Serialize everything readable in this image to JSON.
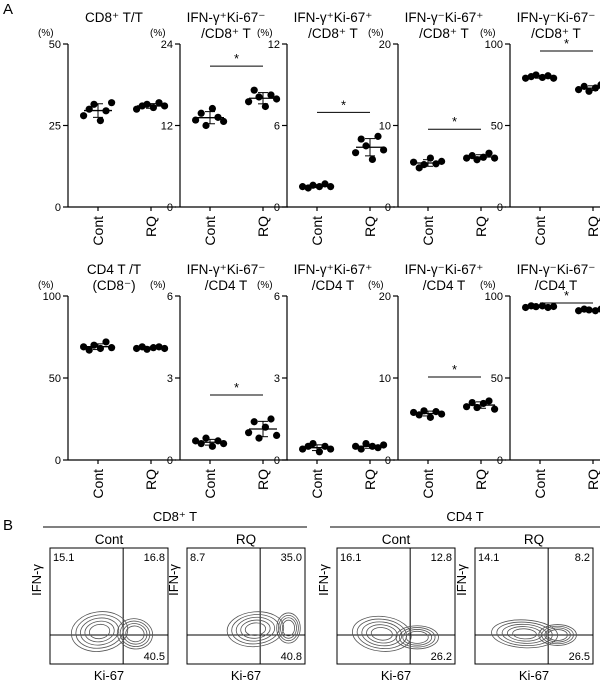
{
  "panel_labels": {
    "a": "A",
    "b": "B"
  },
  "chart_data": {
    "type": "scatter",
    "unit": "(%)",
    "sig_mark": "*",
    "categories": [
      "Cont",
      "RQ"
    ],
    "panels": [
      {
        "title1": "CD8⁺ T/T",
        "title2": "",
        "ylim": [
          0,
          50
        ],
        "ticks": [
          "0",
          "25",
          "50"
        ],
        "sig": false,
        "cont": [
          28,
          30,
          31.5,
          26.5,
          29.5,
          32
        ],
        "rq": [
          30,
          31,
          31.5,
          30.5,
          32,
          31
        ]
      },
      {
        "title1": "IFN-γ⁺Ki-67⁻",
        "title2": "/CD8⁺ T",
        "ylim": [
          0,
          24
        ],
        "ticks": [
          "0",
          "12",
          "24"
        ],
        "sig": true,
        "cont": [
          12.8,
          13.8,
          12.0,
          14.5,
          13.2,
          12.6
        ],
        "rq": [
          15.5,
          17.2,
          16.2,
          14.8,
          16.5,
          15.9
        ]
      },
      {
        "title1": "IFN-γ⁺Ki-67⁺",
        "title2": "/CD8⁺ T",
        "ylim": [
          0,
          12
        ],
        "ticks": [
          "0",
          "6",
          "12"
        ],
        "sig": true,
        "cont": [
          1.5,
          1.4,
          1.6,
          1.5,
          1.7,
          1.5
        ],
        "rq": [
          4.0,
          5.0,
          4.5,
          3.5,
          5.2,
          4.2
        ]
      },
      {
        "title1": "IFN-γ⁻Ki-67⁺",
        "title2": "/CD8⁺ T",
        "ylim": [
          0,
          20
        ],
        "ticks": [
          "0",
          "10",
          "20"
        ],
        "sig": true,
        "cont": [
          5.5,
          4.8,
          5.2,
          6.0,
          5.3,
          5.6
        ],
        "rq": [
          6.0,
          6.3,
          5.8,
          6.1,
          6.6,
          6.0
        ]
      },
      {
        "title1": "IFN-γ⁻Ki-67⁻",
        "title2": "/CD8⁺ T",
        "ylim": [
          0,
          100
        ],
        "ticks": [
          "0",
          "50",
          "100"
        ],
        "sig": true,
        "cont": [
          79,
          80,
          81,
          79.5,
          80.5,
          79
        ],
        "rq": [
          72,
          74,
          71,
          73,
          75,
          72.5
        ]
      },
      {
        "title1": "CD4 T /T",
        "title2": "(CD8⁻)",
        "ylim": [
          0,
          100
        ],
        "ticks": [
          "0",
          "50",
          "100"
        ],
        "sig": false,
        "cont": [
          69,
          67,
          70,
          68,
          72,
          68.5
        ],
        "rq": [
          68,
          69,
          67.5,
          68.5,
          69,
          68
        ]
      },
      {
        "title1": "IFN-γ⁺Ki-67⁻",
        "title2": "/CD4 T",
        "ylim": [
          0,
          6
        ],
        "ticks": [
          "0",
          "3",
          "6"
        ],
        "sig": true,
        "cont": [
          0.7,
          0.6,
          0.8,
          0.5,
          0.7,
          0.6
        ],
        "rq": [
          1.0,
          1.4,
          0.8,
          1.2,
          1.5,
          0.9
        ]
      },
      {
        "title1": "IFN-γ⁺Ki-67⁺",
        "title2": "/CD4 T",
        "ylim": [
          0,
          6
        ],
        "ticks": [
          "0",
          "3",
          "6"
        ],
        "sig": false,
        "cont": [
          0.4,
          0.5,
          0.6,
          0.3,
          0.5,
          0.4
        ],
        "rq": [
          0.5,
          0.4,
          0.6,
          0.5,
          0.45,
          0.55
        ]
      },
      {
        "title1": "IFN-γ⁻Ki-67⁺",
        "title2": "/CD4 T",
        "ylim": [
          0,
          20
        ],
        "ticks": [
          "0",
          "10",
          "20"
        ],
        "sig": true,
        "cont": [
          5.8,
          5.5,
          6.0,
          5.2,
          5.9,
          5.6
        ],
        "rq": [
          6.5,
          7.0,
          6.4,
          6.9,
          7.2,
          6.2
        ]
      },
      {
        "title1": "IFN-γ⁻Ki-67⁻",
        "title2": "/CD4 T",
        "ylim": [
          0,
          100
        ],
        "ticks": [
          "0",
          "50",
          "100"
        ],
        "sig": true,
        "cont": [
          93,
          94,
          93.5,
          94,
          93,
          93.6
        ],
        "rq": [
          91,
          92,
          91.5,
          91,
          92,
          91.8
        ]
      }
    ]
  },
  "flow": {
    "axis_y": "IFN-γ",
    "axis_x": "Ki-67",
    "groups": [
      {
        "label": "CD8⁺ T",
        "plots": [
          {
            "title": "Cont",
            "ul": "15.1",
            "ur": "16.8",
            "lr": "40.5"
          },
          {
            "title": "RQ",
            "ul": "8.7",
            "ur": "35.0",
            "lr": "40.8"
          }
        ]
      },
      {
        "label": "CD4 T",
        "plots": [
          {
            "title": "Cont",
            "ul": "16.1",
            "ur": "12.8",
            "lr": "26.2"
          },
          {
            "title": "RQ",
            "ul": "14.1",
            "ur": "8.2",
            "lr": "26.5"
          }
        ]
      }
    ]
  }
}
